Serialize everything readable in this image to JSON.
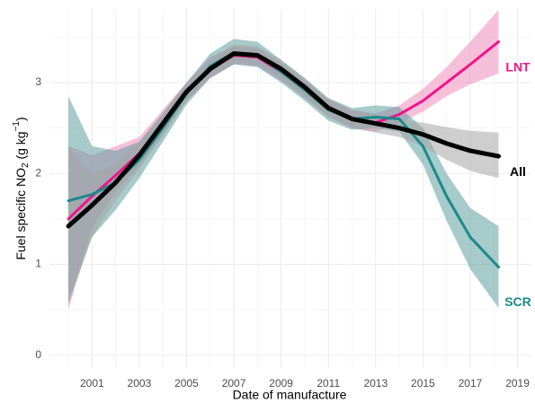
{
  "chart_data": {
    "type": "line",
    "x_label": "Date of manufacture",
    "y_label": [
      "Fuel specific NO",
      "2",
      " (g kg",
      "−1",
      ")"
    ],
    "x": [
      2000,
      2001,
      2002,
      2003,
      2004,
      2005,
      2006,
      2007,
      2008,
      2009,
      2010,
      2011,
      2012,
      2013,
      2014,
      2015,
      2016,
      2017,
      2018.2
    ],
    "series": [
      {
        "name": "LNT",
        "color": "#f0148c",
        "band_color": "#f08cbc",
        "values": [
          1.5,
          1.75,
          1.98,
          2.22,
          2.55,
          2.9,
          3.15,
          3.3,
          3.28,
          3.12,
          2.93,
          2.72,
          2.6,
          2.56,
          2.65,
          2.8,
          3.0,
          3.2,
          3.45
        ],
        "lower": [
          0.5,
          1.4,
          1.8,
          2.08,
          2.42,
          2.8,
          3.05,
          3.2,
          3.18,
          3.02,
          2.83,
          2.62,
          2.5,
          2.46,
          2.55,
          2.68,
          2.85,
          2.98,
          3.1
        ],
        "upper": [
          2.3,
          2.2,
          2.3,
          2.4,
          2.7,
          3.0,
          3.28,
          3.4,
          3.38,
          3.22,
          3.02,
          2.82,
          2.7,
          2.66,
          2.75,
          2.93,
          3.17,
          3.45,
          3.8
        ]
      },
      {
        "name": "SCR",
        "color": "#1a8a8a",
        "band_color": "#5e9ea0",
        "values": [
          1.7,
          1.77,
          1.9,
          2.15,
          2.5,
          2.88,
          3.18,
          3.33,
          3.3,
          3.12,
          2.92,
          2.7,
          2.6,
          2.62,
          2.6,
          2.3,
          1.75,
          1.3,
          0.97
        ],
        "lower": [
          0.6,
          1.3,
          1.6,
          1.95,
          2.35,
          2.76,
          3.05,
          3.2,
          3.17,
          3.0,
          2.8,
          2.58,
          2.48,
          2.5,
          2.46,
          2.1,
          1.48,
          0.95,
          0.52
        ],
        "upper": [
          2.85,
          2.3,
          2.25,
          2.35,
          2.65,
          3.0,
          3.32,
          3.48,
          3.45,
          3.25,
          3.05,
          2.83,
          2.72,
          2.75,
          2.73,
          2.5,
          2.0,
          1.62,
          1.42
        ]
      },
      {
        "name": "All",
        "color": "#000000",
        "band_color": "#a6a6a6",
        "values": [
          1.42,
          1.65,
          1.9,
          2.2,
          2.55,
          2.9,
          3.15,
          3.32,
          3.3,
          3.15,
          2.95,
          2.72,
          2.6,
          2.55,
          2.5,
          2.43,
          2.33,
          2.25,
          2.19
        ],
        "lower": [
          0.55,
          1.3,
          1.7,
          2.05,
          2.42,
          2.8,
          3.05,
          3.22,
          3.2,
          3.05,
          2.85,
          2.62,
          2.5,
          2.45,
          2.4,
          2.3,
          2.15,
          2.03,
          1.95
        ],
        "upper": [
          2.28,
          2.0,
          2.1,
          2.35,
          2.68,
          3.0,
          3.25,
          3.42,
          3.4,
          3.25,
          3.05,
          2.82,
          2.7,
          2.65,
          2.6,
          2.56,
          2.51,
          2.47,
          2.45
        ]
      }
    ],
    "xlim": [
      1999.2,
      2019.55
    ],
    "ylim": [
      -0.14,
      3.81
    ],
    "xticks": [
      2001,
      2003,
      2005,
      2007,
      2009,
      2011,
      2013,
      2015,
      2017,
      2019
    ],
    "xminor": [
      2000,
      2002,
      2004,
      2006,
      2008,
      2010,
      2012,
      2014,
      2016,
      2018
    ],
    "yticks": [
      0,
      1,
      2,
      3
    ],
    "yminor": [
      0.5,
      1.5,
      2.5,
      3.5
    ],
    "grid": true
  }
}
